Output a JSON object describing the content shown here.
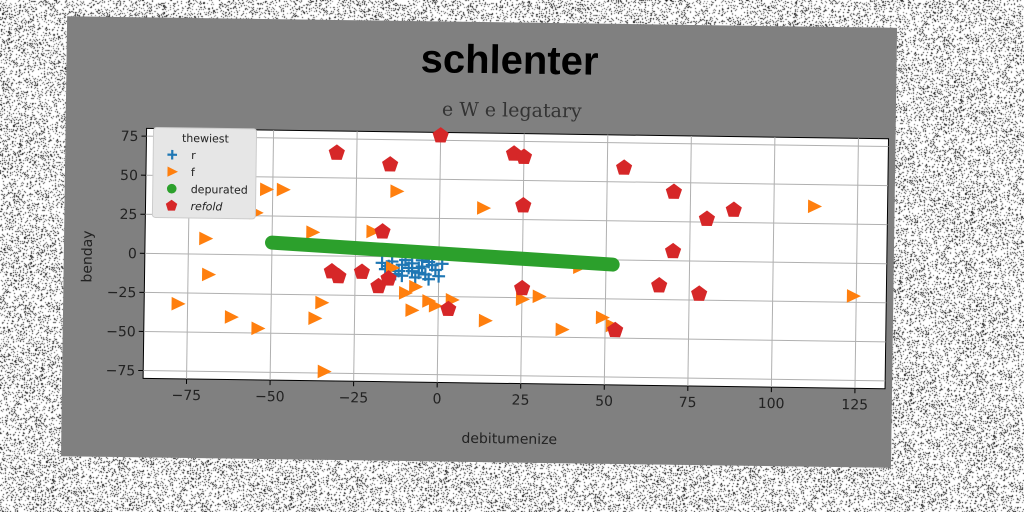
{
  "chart_data": {
    "type": "scatter",
    "title": "schlenter",
    "subtitle": "e W e legatary",
    "xlabel": "debitumenize",
    "ylabel": "benday",
    "xlim": [
      -88,
      134
    ],
    "ylim": [
      -80,
      80
    ],
    "xticks": [
      -75,
      -50,
      -25,
      0,
      25,
      50,
      75,
      100,
      125
    ],
    "yticks": [
      75,
      50,
      25,
      0,
      -25,
      -50,
      -75
    ],
    "grid": true,
    "legend": {
      "title": "thewiest",
      "placement": "top-left",
      "entries": [
        "r",
        "f",
        "depurated",
        "refold"
      ]
    },
    "series": [
      {
        "name": "r",
        "marker": "plus",
        "color": "#1f77b4",
        "points": [
          [
            -17,
            -4
          ],
          [
            -14,
            -3
          ],
          [
            -11,
            -5
          ],
          [
            -8,
            -4
          ],
          [
            -5,
            -6
          ],
          [
            -3,
            -3
          ],
          [
            -1,
            -8
          ],
          [
            0,
            -12
          ],
          [
            -6,
            -10
          ],
          [
            -9,
            -7
          ],
          [
            -12,
            -9
          ],
          [
            -15,
            -6
          ],
          [
            -10,
            -2
          ],
          [
            -4,
            -11
          ],
          [
            -7,
            -13
          ],
          [
            -2,
            -5
          ],
          [
            1,
            -4
          ],
          [
            -13,
            -11
          ],
          [
            -8,
            -9
          ],
          [
            -5,
            -2
          ],
          [
            -16,
            -8
          ],
          [
            -3,
            -14
          ],
          [
            -11,
            -12
          ],
          [
            -6,
            -7
          ]
        ]
      },
      {
        "name": "f",
        "marker": "triangle-right",
        "color": "#ff7f0e",
        "points": [
          [
            -52,
            42
          ],
          [
            -47,
            42
          ],
          [
            -70,
            10
          ],
          [
            -55,
            27
          ],
          [
            -38,
            15
          ],
          [
            -20,
            16
          ],
          [
            -13,
            42
          ],
          [
            13,
            32
          ],
          [
            -69,
            -13
          ],
          [
            -78,
            -32
          ],
          [
            -62,
            -40
          ],
          [
            -54,
            -47
          ],
          [
            -37,
            -40
          ],
          [
            -35,
            -30
          ],
          [
            -34,
            -74
          ],
          [
            -14,
            -7
          ],
          [
            -7,
            -19
          ],
          [
            -8,
            -34
          ],
          [
            -3,
            -28
          ],
          [
            -1,
            -31
          ],
          [
            4,
            -27
          ],
          [
            14,
            -40
          ],
          [
            -10,
            -23
          ],
          [
            25,
            -26
          ],
          [
            30,
            -24
          ],
          [
            37,
            -45
          ],
          [
            42,
            -5
          ],
          [
            49,
            -37
          ],
          [
            52,
            -42
          ],
          [
            112,
            36
          ],
          [
            124,
            -21
          ]
        ]
      },
      {
        "name": "depurated",
        "marker": "circle",
        "color": "#2ca02c",
        "line": {
          "x": [
            -50,
            52
          ],
          "y": [
            8,
            -3
          ]
        }
      },
      {
        "name": "refold",
        "marker": "pentagon",
        "color": "#d62728",
        "points": [
          [
            0,
            78
          ],
          [
            -31,
            66
          ],
          [
            -15,
            59
          ],
          [
            22,
            67
          ],
          [
            25,
            65
          ],
          [
            55,
            59
          ],
          [
            70,
            44
          ],
          [
            80,
            27
          ],
          [
            88,
            33
          ],
          [
            25,
            34
          ],
          [
            -17,
            16
          ],
          [
            70,
            6
          ],
          [
            -32,
            -10
          ],
          [
            -30,
            -13
          ],
          [
            -23,
            -10
          ],
          [
            -18,
            -19
          ],
          [
            -15,
            -14
          ],
          [
            3,
            -33
          ],
          [
            25,
            -19
          ],
          [
            66,
            -16
          ],
          [
            78,
            -21
          ],
          [
            53,
            -45
          ]
        ]
      }
    ]
  }
}
